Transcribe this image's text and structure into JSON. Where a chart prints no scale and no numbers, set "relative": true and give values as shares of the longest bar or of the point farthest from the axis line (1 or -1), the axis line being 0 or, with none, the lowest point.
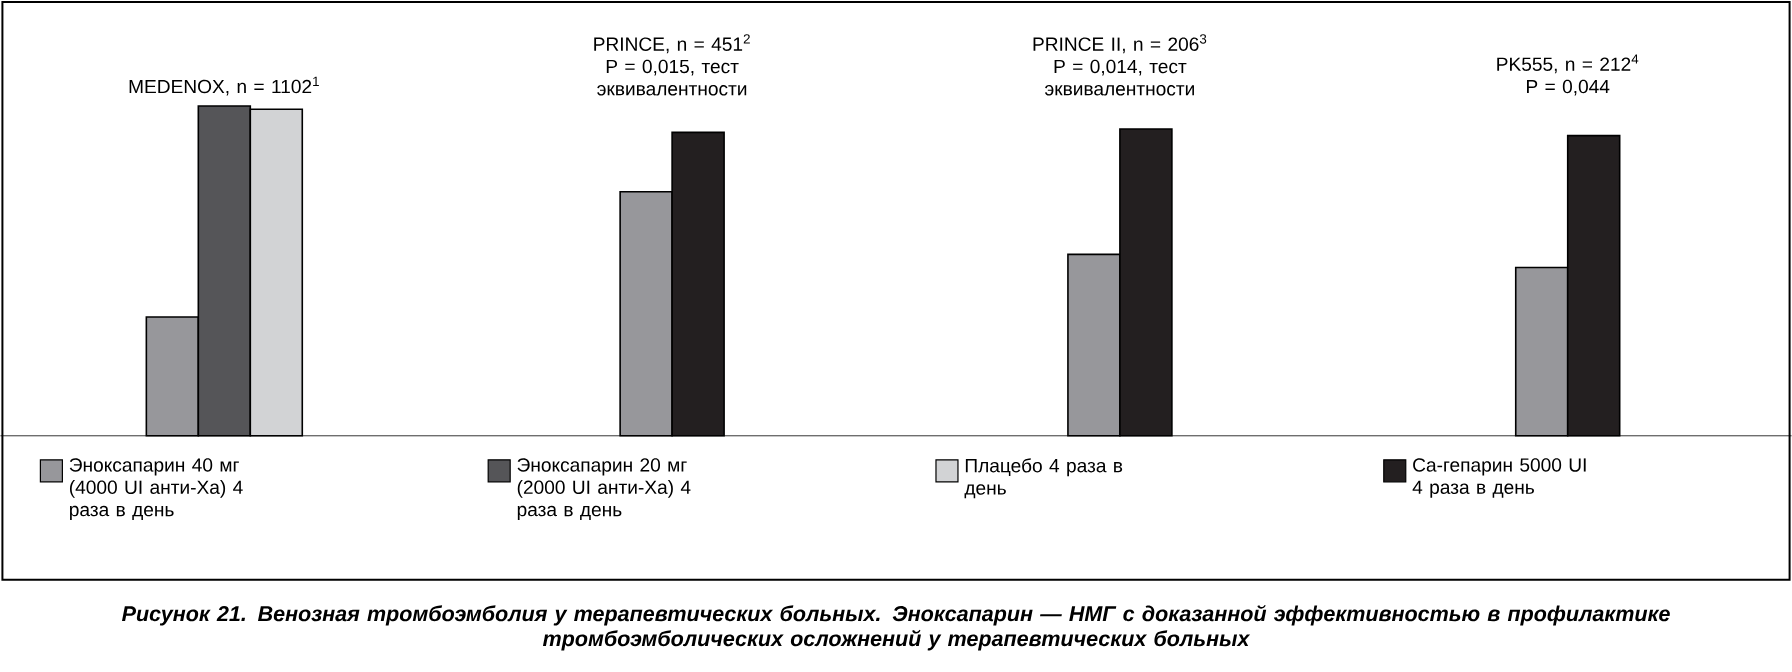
{
  "chart_data": {
    "type": "bar",
    "relative": true,
    "title": "Рисунок 21. Венозная тромбоэмболия у терапевтических больных. Эноксапарин — НМГ с доказанной эффективностью в профилактике тромбоэмболических осложнений у терапевтических больных",
    "categories": [
      "MEDENOX, n = 1102$^{1}$",
      "PRINCE, n = 451$^{2}$",
      "PRINCE II, n = 206$^{3}$",
      "PK555, n = 212$^{4}$"
    ],
    "annotations": [
      "P = 0,015, тест эквивалентности",
      "P = 0,014, тест эквивалентности",
      "P = 0,044"
    ],
    "series": [
      {
        "name": "Эноксапарин 40 мг (4000 UI анти-Xa) 4 раза в день",
        "color": "#97979b",
        "values": [
          0.36,
          0.74,
          0.55,
          0.51
        ]
      },
      {
        "name": "Эноксапарин 20 мг (2000 UI анти-Xa) 4 раза в день",
        "color": "#555558",
        "values": [
          1.0,
          null,
          null,
          null
        ]
      },
      {
        "name": "Плацебо 4 раза в день",
        "color": "#d2d3d5",
        "values": [
          0.99,
          null,
          null,
          null
        ]
      },
      {
        "name": "Ca-гепарин 5000 UI 4 раза в день",
        "color": "#231f20",
        "values": [
          null,
          0.92,
          0.93,
          0.91
        ]
      }
    ],
    "legend": "bottom"
  }
}
